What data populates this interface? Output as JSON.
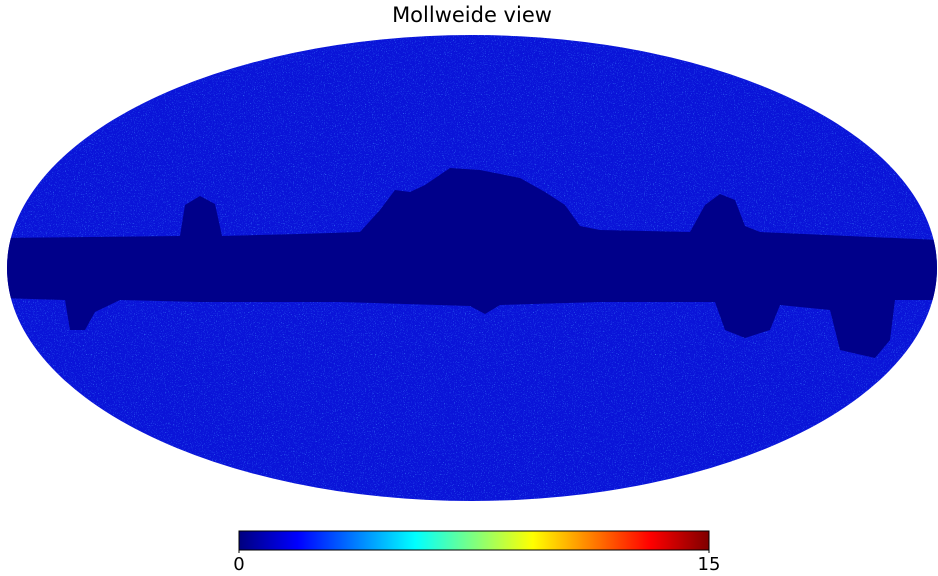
{
  "title": "Mollweide view",
  "colorbar": {
    "colormap": "jet",
    "lim": [
      0,
      15
    ],
    "ticks": [
      0,
      15
    ]
  }
}
